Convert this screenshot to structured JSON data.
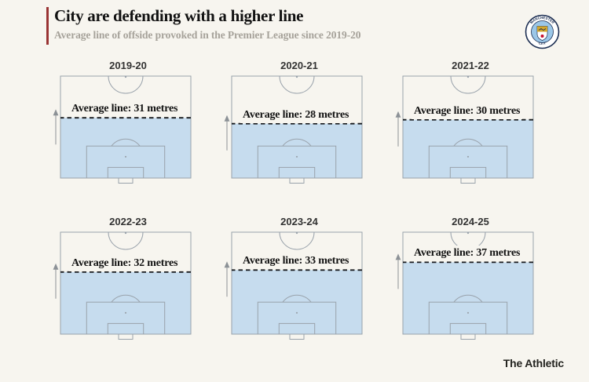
{
  "header": {
    "title": "City are defending with a higher line",
    "subtitle": "Average line of offside provoked in the Premier League since 2019-20"
  },
  "badge": {
    "club": "Manchester City",
    "top_text": "MANCHESTER",
    "bottom_text": "CITY"
  },
  "footer": {
    "brand": "The Athletic"
  },
  "chart_data": {
    "type": "small-multiples-pitch",
    "title": "City are defending with a higher line",
    "subtitle": "Average line of offside provoked in the Premier League since 2019-20",
    "unit": "metres",
    "pitch_half_length_m": 52.5,
    "legend_position": "none",
    "grid": "2 rows x 3 columns",
    "panels": [
      {
        "season": "2019-20",
        "average_line_m": 31,
        "label": "Average line: 31 metres"
      },
      {
        "season": "2020-21",
        "average_line_m": 28,
        "label": "Average line: 28 metres"
      },
      {
        "season": "2021-22",
        "average_line_m": 30,
        "label": "Average line: 30 metres"
      },
      {
        "season": "2022-23",
        "average_line_m": 32,
        "label": "Average line: 32 metres"
      },
      {
        "season": "2023-24",
        "average_line_m": 33,
        "label": "Average line: 33 metres"
      },
      {
        "season": "2024-25",
        "average_line_m": 37,
        "label": "Average line: 37 metres"
      }
    ],
    "colors": {
      "page_bg": "#f7f5ef",
      "zone_fill": "#c6dcee",
      "pitch_outline": "#99a2ab",
      "dashed_line": "#17191c",
      "arrow": "#8c9196",
      "accent_bar": "#993333",
      "title_text": "#121212",
      "subtitle_text": "#a6a29a"
    }
  }
}
